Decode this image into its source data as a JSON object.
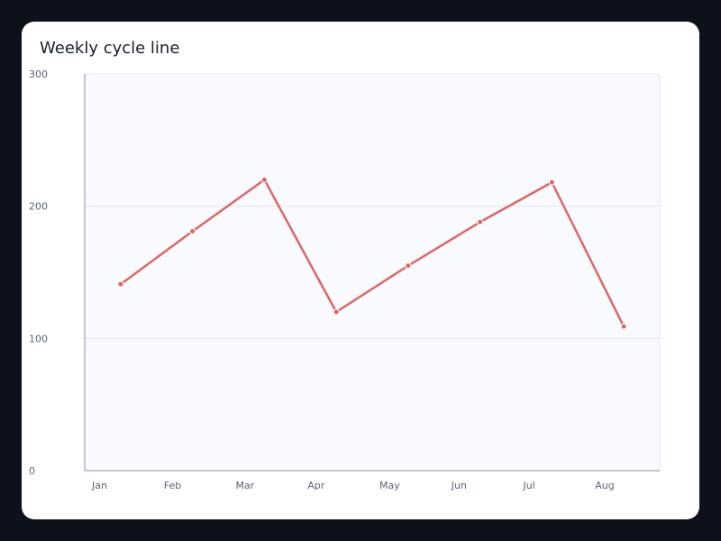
{
  "chart_data": {
    "type": "line",
    "title": "Weekly cycle line",
    "categories": [
      "Jan",
      "Feb",
      "Mar",
      "Apr",
      "May",
      "Jun",
      "Jul",
      "Aug"
    ],
    "series": [
      {
        "values": [
          141,
          181,
          220,
          120,
          155,
          188,
          218,
          109
        ]
      }
    ],
    "y_ticks": [
      0,
      100,
      200,
      300
    ],
    "ylim": [
      0,
      300
    ],
    "grid": true,
    "line_color": "#e06666",
    "plot_background": "#f8fafd"
  }
}
